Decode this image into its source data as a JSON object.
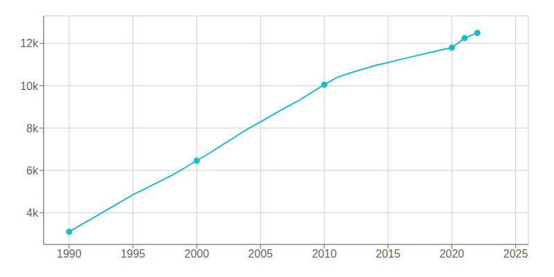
{
  "chart_data": {
    "type": "line",
    "x": [
      1990,
      1991,
      1992,
      1993,
      1994,
      1995,
      1996,
      1997,
      1998,
      1999,
      2000,
      2001,
      2002,
      2003,
      2004,
      2005,
      2006,
      2007,
      2008,
      2009,
      2010,
      2011,
      2012,
      2013,
      2014,
      2015,
      2016,
      2017,
      2018,
      2019,
      2020,
      2021,
      2022
    ],
    "series": [
      {
        "color": "#17becf",
        "values": [
          3100,
          3450,
          3800,
          4150,
          4500,
          4850,
          5150,
          5450,
          5750,
          6100,
          6460,
          6820,
          7200,
          7580,
          7960,
          8300,
          8640,
          8980,
          9300,
          9680,
          10050,
          10400,
          10600,
          10780,
          10960,
          11100,
          11250,
          11390,
          11530,
          11670,
          11800,
          12250,
          12500
        ]
      },
      {
        "color": "#17becf",
        "marker": "circle",
        "line_style": "none",
        "values": [
          3100,
          null,
          null,
          null,
          null,
          null,
          null,
          null,
          null,
          null,
          6460,
          null,
          null,
          null,
          null,
          null,
          null,
          null,
          null,
          null,
          10050,
          null,
          null,
          null,
          null,
          null,
          null,
          null,
          null,
          null,
          11800,
          12250,
          12500
        ]
      }
    ],
    "xlim": [
      1988,
      2026
    ],
    "ylim": [
      2500,
      13300
    ],
    "xticks": [
      1990,
      1995,
      2000,
      2005,
      2010,
      2015,
      2020,
      2025
    ],
    "yticks": [
      {
        "value": 4000,
        "label": "4k"
      },
      {
        "value": 6000,
        "label": "6k"
      },
      {
        "value": 8000,
        "label": "8k"
      },
      {
        "value": 10000,
        "label": "10k"
      },
      {
        "value": 12000,
        "label": "12k"
      }
    ],
    "grid": true
  }
}
